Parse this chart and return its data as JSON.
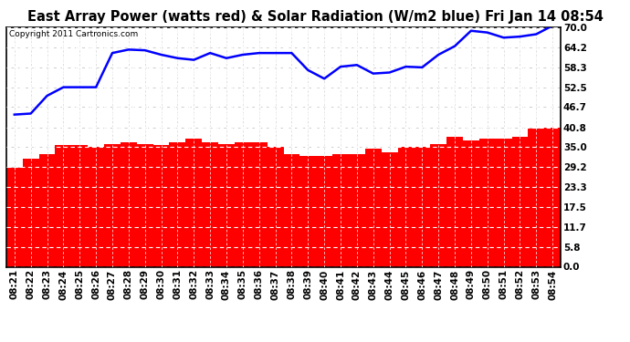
{
  "title": "East Array Power (watts red) & Solar Radiation (W/m2 blue) Fri Jan 14 08:54",
  "copyright": "Copyright 2011 Cartronics.com",
  "x_labels": [
    "08:21",
    "08:22",
    "08:23",
    "08:24",
    "08:25",
    "08:26",
    "08:27",
    "08:28",
    "08:29",
    "08:30",
    "08:31",
    "08:32",
    "08:33",
    "08:34",
    "08:35",
    "08:36",
    "08:37",
    "08:38",
    "08:39",
    "08:40",
    "08:41",
    "08:42",
    "08:43",
    "08:44",
    "08:45",
    "08:46",
    "08:47",
    "08:48",
    "08:49",
    "08:50",
    "08:51",
    "08:52",
    "08:53",
    "08:54"
  ],
  "bar_values": [
    29.0,
    31.5,
    33.0,
    35.5,
    35.5,
    35.0,
    36.0,
    36.5,
    36.0,
    35.5,
    36.5,
    37.5,
    36.5,
    36.0,
    36.5,
    36.5,
    35.0,
    33.0,
    32.5,
    32.5,
    33.0,
    33.0,
    34.5,
    33.5,
    35.0,
    35.0,
    36.0,
    38.0,
    37.0,
    37.5,
    37.5,
    38.0,
    40.5,
    40.8
  ],
  "line_values": [
    44.5,
    44.8,
    50.0,
    52.5,
    52.5,
    52.5,
    62.5,
    63.5,
    63.3,
    62.0,
    61.0,
    60.5,
    62.5,
    61.0,
    62.0,
    62.5,
    62.5,
    62.5,
    57.5,
    55.0,
    58.5,
    59.0,
    56.5,
    56.8,
    58.5,
    58.3,
    62.0,
    64.5,
    69.0,
    68.5,
    67.0,
    67.3,
    68.0,
    70.5
  ],
  "y_ticks": [
    0.0,
    5.8,
    11.7,
    17.5,
    23.3,
    29.2,
    35.0,
    40.8,
    46.7,
    52.5,
    58.3,
    64.2,
    70.0
  ],
  "bar_color": "#ff0000",
  "line_color": "#0000ff",
  "bg_color": "#ffffff",
  "plot_bg_color": "#ffffff",
  "grid_color": "#cccccc",
  "border_color": "#000000",
  "title_fontsize": 10.5,
  "copyright_fontsize": 6.5,
  "tick_fontsize": 7.5,
  "ymin": 0.0,
  "ymax": 70.0
}
